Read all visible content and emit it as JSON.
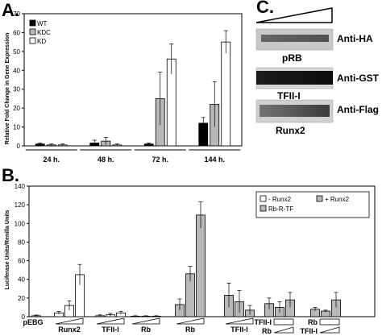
{
  "panels": {
    "a": {
      "letter": "A."
    },
    "b": {
      "letter": "B."
    },
    "c": {
      "letter": "C."
    }
  },
  "chart_data": [
    {
      "type": "bar",
      "panel": "A.",
      "ylabel": "Relative Fold Change in Gene Expression",
      "ylim": [
        0,
        70
      ],
      "yticks": [
        0,
        10,
        20,
        30,
        40,
        50,
        60,
        70
      ],
      "grid": false,
      "legend_position": "top-left",
      "categories": [
        "24 h.",
        "48 h.",
        "72 h.",
        "144 h."
      ],
      "series": [
        {
          "name": "WT",
          "color": "#000000",
          "values": [
            1,
            1.5,
            1,
            12
          ],
          "errors": [
            0.5,
            1.5,
            0.5,
            3
          ]
        },
        {
          "name": "KDC",
          "color": "#b8b8b8",
          "values": [
            0.5,
            2.5,
            25,
            22
          ],
          "errors": [
            0.5,
            2,
            14,
            12
          ]
        },
        {
          "name": "KD",
          "color": "#ffffff",
          "values": [
            0.5,
            0.5,
            46,
            55
          ],
          "errors": [
            0.5,
            0.5,
            8,
            6
          ]
        }
      ]
    },
    {
      "type": "bar",
      "panel": "B.",
      "ylabel": "Luciferase Units/Renilla Units",
      "ylim": [
        0,
        140
      ],
      "yticks": [
        0,
        20,
        40,
        60,
        80,
        100,
        120,
        140
      ],
      "grid": false,
      "legend_position": "top-right",
      "legend": [
        {
          "name": "- Runx2",
          "color": "#ffffff"
        },
        {
          "name": "+ Runx2",
          "color": "#b8b8b8"
        },
        {
          "name": "Rb-R-TF",
          "color": "#b8b8b8"
        }
      ],
      "groups": [
        {
          "label": "pEBG",
          "color": "#ffffff",
          "values": [
            1
          ],
          "errors": [
            0.8
          ]
        },
        {
          "label": "Runx2",
          "color": "#ffffff",
          "values": [
            4,
            12,
            45
          ],
          "errors": [
            1.5,
            5,
            11
          ]
        },
        {
          "label": "TFII-I",
          "color": "#ffffff",
          "values": [
            1,
            2,
            4
          ],
          "errors": [
            1,
            1.5,
            1.5
          ]
        },
        {
          "label": "Rb",
          "color": "#ffffff",
          "values": [
            0.5,
            0.5,
            0.5
          ],
          "errors": [
            0.5,
            0.5,
            0.5
          ]
        },
        {
          "label": "Rb",
          "color": "#b8b8b8",
          "values": [
            13,
            46,
            109
          ],
          "errors": [
            6,
            8,
            14
          ]
        },
        {
          "label": "TFII-I",
          "color": "#b8b8b8",
          "values": [
            23,
            16,
            7
          ],
          "errors": [
            13,
            12,
            5
          ]
        },
        {
          "label_top": "TFII-I",
          "label_bottom": "Rb",
          "color": "#b8b8b8",
          "values": [
            14,
            10,
            18
          ],
          "errors": [
            6,
            6,
            8
          ]
        },
        {
          "label_top": "Rb",
          "label_bottom": "TFII-I",
          "color": "#b8b8b8",
          "values": [
            8,
            6,
            18
          ],
          "errors": [
            2,
            1,
            8
          ]
        }
      ]
    }
  ],
  "blots": {
    "rows": [
      {
        "name": "pRB",
        "antibody": "Anti-HA"
      },
      {
        "name": "TFII-I",
        "antibody": "Anti-GST"
      },
      {
        "name": "Runx2",
        "antibody": "Anti-Flag"
      }
    ]
  }
}
